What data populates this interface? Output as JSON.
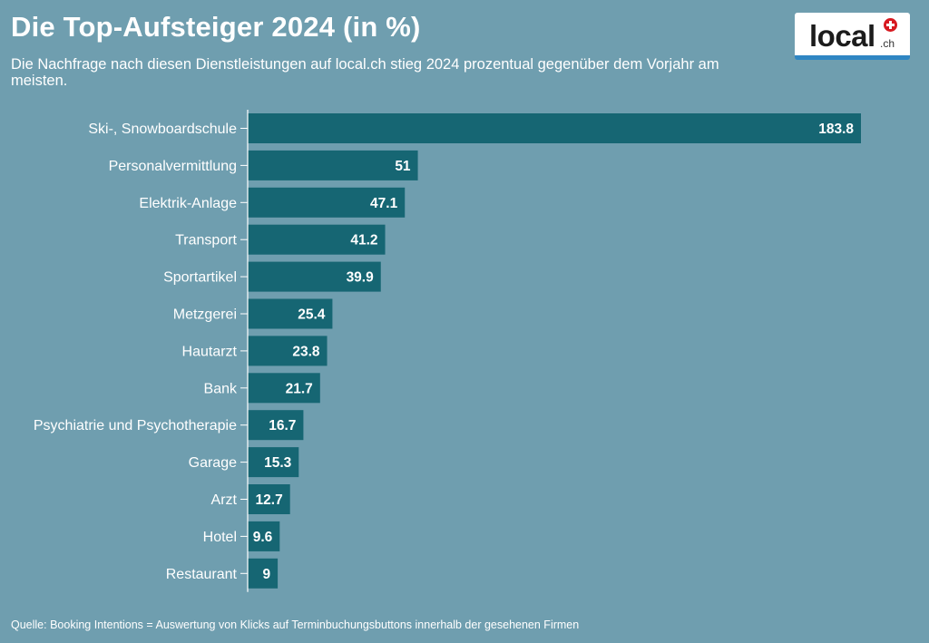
{
  "header": {
    "title": "Die Top-Aufsteiger 2024 (in %)",
    "subtitle": "Die Nachfrage nach diesen Dienstleistungen auf local.ch stieg 2024 prozentual gegenüber dem Vorjahr am meisten."
  },
  "logo": {
    "word": "local",
    "tld": ".ch"
  },
  "chart_data": {
    "type": "bar",
    "orientation": "horizontal",
    "categories": [
      "Ski-, Snowboardschule",
      "Personalvermittlung",
      "Elektrik-Anlage",
      "Transport",
      "Sportartikel",
      "Metzgerei",
      "Hautarzt",
      "Bank",
      "Psychiatrie und Psychotherapie",
      "Garage",
      "Arzt",
      "Hotel",
      "Restaurant"
    ],
    "values": [
      183.8,
      51,
      47.1,
      41.2,
      39.9,
      25.4,
      23.8,
      21.7,
      16.7,
      15.3,
      12.7,
      9.6,
      9
    ],
    "data_labels": [
      "183.8",
      "51",
      "47.1",
      "41.2",
      "39.9",
      "25.4",
      "23.8",
      "21.7",
      "16.7",
      "15.3",
      "12.7",
      "9.6",
      "9"
    ],
    "title": "Die Top-Aufsteiger 2024 (in %)",
    "xlim": [
      0,
      183.8
    ],
    "grid": false,
    "colors": {
      "bar": "#166673",
      "label": "#ffffff",
      "axis": "#ffffff",
      "background": "#6f9eaf"
    }
  },
  "footer": {
    "source": "Quelle: Booking Intentions = Auswertung von Klicks auf Terminbuchungsbuttons innerhalb der gesehenen Firmen"
  }
}
